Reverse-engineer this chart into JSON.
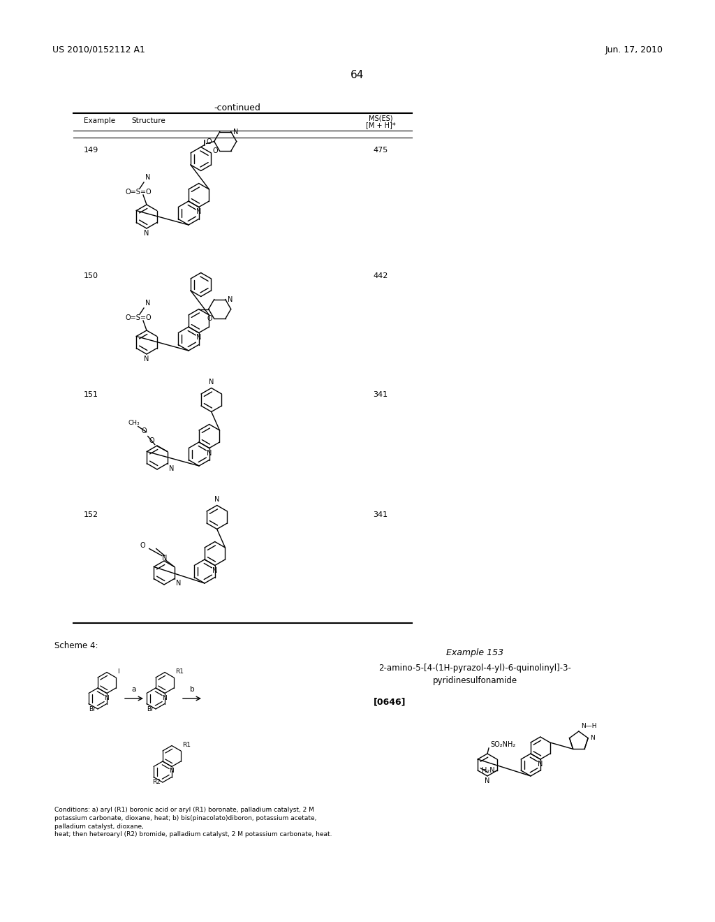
{
  "page_number": "64",
  "patent_number": "US 2010/0152112 A1",
  "patent_date": "Jun. 17, 2010",
  "continued_label": "-continued",
  "table_header_example": "Example",
  "table_header_structure": "Structure",
  "table_header_ms1": "MS(ES)",
  "table_header_ms2": "[M + H]*",
  "examples": [
    {
      "number": "149",
      "ms": "475"
    },
    {
      "number": "150",
      "ms": "442"
    },
    {
      "number": "151",
      "ms": "341"
    },
    {
      "number": "152",
      "ms": "341"
    }
  ],
  "scheme_label": "Scheme 4:",
  "example153_label": "Example 153",
  "example153_name": "2-amino-5-[4-(1H-pyrazol-4-yl)-6-quinolinyl]-3-\npyridinesulfonamide",
  "example153_ref": "[0646]",
  "conditions_text": "Conditions: a) aryl (R1) boronic acid or aryl (R1) boronate, palladium catalyst, 2 M\npotassium carbonate, dioxane, heat; b) bis(pinacolato)diboron, potassium acetate,\npalladium catalyst, dioxane,\nheat; then heteroaryl (R2) bromide, palladium catalyst, 2 M potassium carbonate, heat.",
  "bg_color": "#ffffff",
  "text_color": "#000000",
  "line_color": "#000000"
}
